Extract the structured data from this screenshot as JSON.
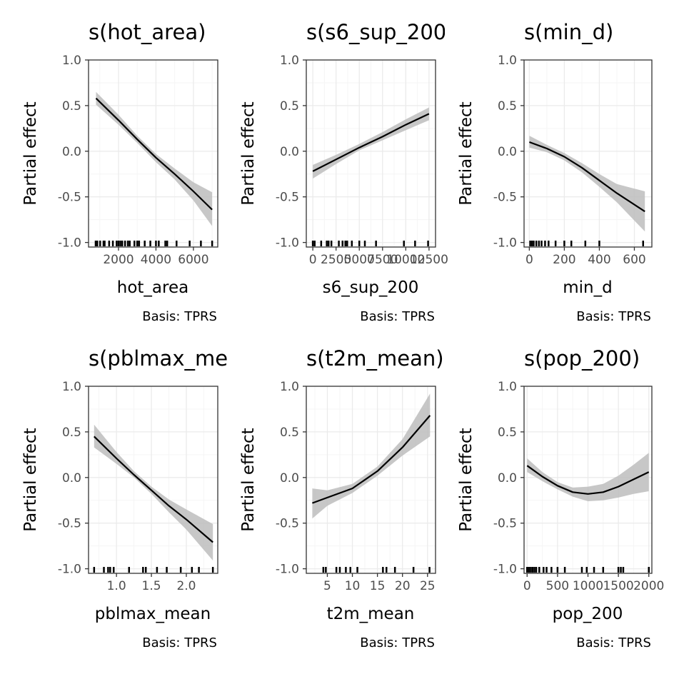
{
  "figure": {
    "background": "#ffffff"
  },
  "style": {
    "line_color": "#000000",
    "band_color": "#bdbdbd",
    "grid_major": "#ebebeb",
    "grid_minor": "#f5f5f5",
    "panel_border": "#333333",
    "rug_color": "#000000"
  },
  "chart_data": [
    {
      "type": "line",
      "title": "s(hot_area)",
      "xlabel": "hot_area",
      "ylabel": "Partial effect",
      "caption": "Basis: TPRS",
      "xlim": [
        400,
        7300
      ],
      "ylim": [
        -1.05,
        1.0
      ],
      "x_ticks": [
        2000,
        4000,
        6000
      ],
      "x_tick_labels": [
        "2000",
        "4000",
        "6000"
      ],
      "y_ticks": [
        -1.0,
        -0.5,
        0.0,
        0.5,
        1.0
      ],
      "y_tick_labels": [
        "-1.0",
        "-0.5",
        "0.0",
        "0.5",
        "1.0"
      ],
      "grid": true,
      "series": [
        {
          "x": [
            800,
            2000,
            3000,
            4000,
            5000,
            6000,
            7000
          ],
          "y": [
            0.58,
            0.34,
            0.13,
            -0.07,
            -0.25,
            -0.44,
            -0.64
          ],
          "lower": [
            0.51,
            0.29,
            0.09,
            -0.12,
            -0.31,
            -0.54,
            -0.82
          ],
          "upper": [
            0.65,
            0.4,
            0.17,
            -0.03,
            -0.19,
            -0.34,
            -0.45
          ]
        }
      ],
      "rug": [
        780,
        870,
        1020,
        1200,
        1260,
        1500,
        1700,
        1900,
        2000,
        2100,
        2200,
        2350,
        2500,
        2600,
        2850,
        3000,
        3100,
        3400,
        3700,
        4000,
        4150,
        4500,
        4600,
        5100,
        5800,
        6400,
        7000
      ]
    },
    {
      "type": "line",
      "title": "s(s6_sup_200)",
      "xlabel": "s6_sup_200",
      "ylabel": "Partial effect",
      "caption": "Basis: TPRS",
      "xlim": [
        -700,
        13200
      ],
      "ylim": [
        -1.05,
        1.0
      ],
      "x_ticks": [
        0,
        2500,
        5000,
        7500,
        10000,
        12500
      ],
      "x_tick_labels": [
        "0",
        "2500",
        "5000",
        "7500",
        "10000",
        "12500"
      ],
      "y_ticks": [
        -1.0,
        -0.5,
        0.0,
        0.5,
        1.0
      ],
      "y_tick_labels": [
        "-1.0",
        "-0.5",
        "0.0",
        "0.5",
        "1.0"
      ],
      "grid": true,
      "series": [
        {
          "x": [
            0,
            2500,
            5000,
            7500,
            10000,
            12500
          ],
          "y": [
            -0.22,
            -0.09,
            0.04,
            0.16,
            0.29,
            0.41
          ],
          "lower": [
            -0.3,
            -0.14,
            0.01,
            0.12,
            0.23,
            0.34
          ],
          "upper": [
            -0.15,
            -0.04,
            0.08,
            0.21,
            0.35,
            0.48
          ]
        }
      ],
      "rug": [
        0,
        200,
        900,
        1500,
        1700,
        2000,
        2800,
        3200,
        3500,
        3700,
        4200,
        5000,
        5600,
        6800,
        9800,
        11000,
        12400
      ]
    },
    {
      "type": "line",
      "title": "s(min_d)",
      "xlabel": "min_d",
      "ylabel": "Partial effect",
      "caption": "Basis: TPRS",
      "xlim": [
        -30,
        700
      ],
      "ylim": [
        -1.05,
        1.0
      ],
      "x_ticks": [
        0,
        200,
        400,
        600
      ],
      "x_tick_labels": [
        "0",
        "200",
        "400",
        "600"
      ],
      "y_ticks": [
        -1.0,
        -0.5,
        0.0,
        0.5,
        1.0
      ],
      "y_tick_labels": [
        "-1.0",
        "-0.5",
        "0.0",
        "0.5",
        "1.0"
      ],
      "grid": true,
      "series": [
        {
          "x": [
            0,
            100,
            200,
            300,
            400,
            500,
            660
          ],
          "y": [
            0.1,
            0.03,
            -0.06,
            -0.18,
            -0.32,
            -0.46,
            -0.66
          ],
          "lower": [
            0.04,
            -0.01,
            -0.1,
            -0.23,
            -0.39,
            -0.56,
            -0.88
          ],
          "upper": [
            0.17,
            0.07,
            -0.02,
            -0.13,
            -0.25,
            -0.36,
            -0.44
          ]
        }
      ],
      "rug": [
        5,
        15,
        25,
        40,
        55,
        70,
        90,
        110,
        150,
        200,
        240,
        320,
        400,
        650
      ]
    },
    {
      "type": "line",
      "title": "s(pblmax_mean)",
      "xlabel": "pblmax_mean",
      "ylabel": "Partial effect",
      "caption": "Basis: TPRS",
      "xlim": [
        0.6,
        2.45
      ],
      "ylim": [
        -1.05,
        1.0
      ],
      "x_ticks": [
        1.0,
        1.5,
        2.0
      ],
      "x_tick_labels": [
        "1.0",
        "1.5",
        "2.0"
      ],
      "y_ticks": [
        -1.0,
        -0.5,
        0.0,
        0.5,
        1.0
      ],
      "y_tick_labels": [
        "-1.0",
        "-0.5",
        "0.0",
        "0.5",
        "1.0"
      ],
      "grid": true,
      "series": [
        {
          "x": [
            0.68,
            1.0,
            1.25,
            1.5,
            1.75,
            2.0,
            2.38
          ],
          "y": [
            0.45,
            0.21,
            0.03,
            -0.14,
            -0.31,
            -0.46,
            -0.71
          ],
          "lower": [
            0.33,
            0.15,
            0.0,
            -0.18,
            -0.38,
            -0.57,
            -0.91
          ],
          "upper": [
            0.58,
            0.28,
            0.07,
            -0.1,
            -0.24,
            -0.35,
            -0.51
          ]
        }
      ],
      "rug": [
        0.68,
        0.82,
        0.88,
        0.91,
        0.96,
        1.18,
        1.38,
        1.42,
        1.58,
        1.72,
        1.92,
        2.08,
        2.18,
        2.38
      ]
    },
    {
      "type": "line",
      "title": "s(t2m_mean)",
      "xlabel": "t2m_mean",
      "ylabel": "Partial effect",
      "caption": "Basis: TPRS",
      "xlim": [
        0.8,
        26.6
      ],
      "ylim": [
        -1.05,
        1.0
      ],
      "x_ticks": [
        5,
        10,
        15,
        20,
        25
      ],
      "x_tick_labels": [
        "5",
        "10",
        "15",
        "20",
        "25"
      ],
      "y_ticks": [
        -1.0,
        -0.5,
        0.0,
        0.5,
        1.0
      ],
      "y_tick_labels": [
        "-1.0",
        "-0.5",
        "0.0",
        "0.5",
        "1.0"
      ],
      "grid": true,
      "series": [
        {
          "x": [
            2,
            5,
            10,
            15,
            20,
            25.5
          ],
          "y": [
            -0.28,
            -0.22,
            -0.12,
            0.07,
            0.33,
            0.68
          ],
          "lower": [
            -0.45,
            -0.31,
            -0.17,
            0.02,
            0.24,
            0.45
          ],
          "upper": [
            -0.12,
            -0.14,
            -0.07,
            0.12,
            0.42,
            0.92
          ]
        }
      ],
      "rug": [
        4.2,
        4.7,
        6.8,
        7.5,
        8.7,
        9.6,
        11.0,
        16.1,
        16.8,
        18.5,
        22.2,
        25.4
      ]
    },
    {
      "type": "line",
      "title": "s(pop_200)",
      "xlabel": "pop_200",
      "ylabel": "Partial effect",
      "caption": "Basis: TPRS",
      "xlim": [
        -50,
        2050
      ],
      "ylim": [
        -1.05,
        1.0
      ],
      "x_ticks": [
        0,
        500,
        1000,
        1500,
        2000
      ],
      "x_tick_labels": [
        "0",
        "500",
        "1000",
        "1500",
        "2000"
      ],
      "y_ticks": [
        -1.0,
        -0.5,
        0.0,
        0.5,
        1.0
      ],
      "y_tick_labels": [
        "-1.0",
        "-0.5",
        "0.0",
        "0.5",
        "1.0"
      ],
      "grid": true,
      "series": [
        {
          "x": [
            0,
            250,
            500,
            750,
            1000,
            1250,
            1500,
            1750,
            2000
          ],
          "y": [
            0.13,
            0.01,
            -0.09,
            -0.16,
            -0.18,
            -0.16,
            -0.1,
            -0.02,
            0.06
          ],
          "lower": [
            0.06,
            -0.04,
            -0.13,
            -0.21,
            -0.26,
            -0.25,
            -0.22,
            -0.18,
            -0.15
          ],
          "upper": [
            0.21,
            0.06,
            -0.05,
            -0.11,
            -0.1,
            -0.07,
            0.02,
            0.14,
            0.27
          ]
        }
      ],
      "rug": [
        0,
        30,
        60,
        90,
        120,
        150,
        200,
        270,
        320,
        400,
        500,
        620,
        900,
        980,
        1100,
        1250,
        1500,
        1540,
        1580,
        2000
      ]
    }
  ]
}
